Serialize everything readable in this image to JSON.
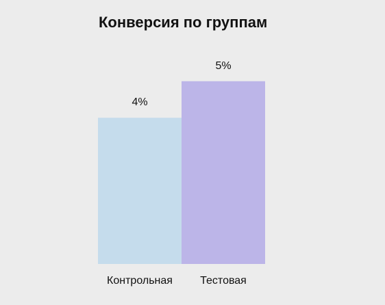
{
  "chart_data": {
    "type": "bar",
    "title": "Конверсия по группам",
    "categories": [
      "Контрольная",
      "Тестовая"
    ],
    "values": [
      4,
      5
    ],
    "value_labels": [
      "4%",
      "5%"
    ],
    "colors": [
      "#c5dcec",
      "#bcb5e8"
    ],
    "ylim": [
      0,
      5.8
    ],
    "xlabel": "",
    "ylabel": "",
    "grid": false,
    "legend": "none"
  },
  "colors": {
    "background": "#ececec",
    "text": "#111111"
  }
}
